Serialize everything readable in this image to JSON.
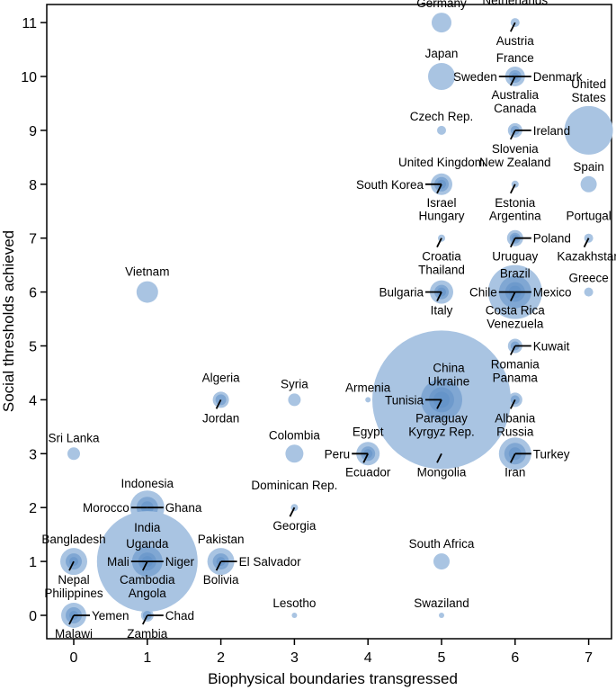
{
  "chart_data": {
    "type": "scatter",
    "xlabel": "Biophysical boundaries transgressed",
    "ylabel": "Social thresholds achieved",
    "xlim": [
      -0.35,
      7.35
    ],
    "ylim": [
      -0.45,
      11.35
    ],
    "xticks": [
      0,
      1,
      2,
      3,
      4,
      5,
      6,
      7
    ],
    "yticks": [
      0,
      1,
      2,
      3,
      4,
      5,
      6,
      7,
      8,
      9,
      10,
      11
    ],
    "grid": false,
    "bubble_color": "#a9c4e2",
    "stacked_color": "#5f90c6",
    "leader_color": "#000000",
    "points": [
      {
        "x": 5,
        "y": 11,
        "label": "Germany",
        "pos": "above"
      },
      {
        "x": 6,
        "y": 11,
        "labels": [
          "Netherlands",
          "Austria"
        ],
        "pos": "above-below"
      },
      {
        "x": 5,
        "y": 10,
        "label": "Japan",
        "pos": "above"
      },
      {
        "x": 6,
        "y": 10,
        "labels": [
          "France",
          "Sweden",
          "Denmark",
          "Australia"
        ],
        "pos": "cross"
      },
      {
        "x": 5,
        "y": 9,
        "label": "Czech Rep.",
        "pos": "above"
      },
      {
        "x": 6,
        "y": 9,
        "labels": [
          "Canada",
          "Ireland",
          "Slovenia"
        ],
        "pos": "above-right-below"
      },
      {
        "x": 7,
        "y": 9,
        "label": "United States",
        "pos": "above2"
      },
      {
        "x": 5,
        "y": 8,
        "labels": [
          "United Kingdom",
          "South Korea",
          "Israel"
        ],
        "pos": "above-left-below"
      },
      {
        "x": 6,
        "y": 8,
        "labels": [
          "New Zealand",
          "Estonia"
        ],
        "pos": "above-below"
      },
      {
        "x": 7,
        "y": 8,
        "label": "Spain",
        "pos": "above"
      },
      {
        "x": 5,
        "y": 7,
        "labels": [
          "Hungary",
          "Croatia"
        ],
        "pos": "above-below"
      },
      {
        "x": 6,
        "y": 7,
        "labels": [
          "Argentina",
          "Poland",
          "Uruguay"
        ],
        "pos": "above-right-below"
      },
      {
        "x": 7,
        "y": 7,
        "labels": [
          "Portugal",
          "Kazakhstan"
        ],
        "pos": "above-below"
      },
      {
        "x": 1,
        "y": 6,
        "label": "Vietnam",
        "pos": "above"
      },
      {
        "x": 5,
        "y": 6,
        "labels": [
          "Thailand",
          "Bulgaria",
          "Italy"
        ],
        "pos": "above-left-below"
      },
      {
        "x": 6,
        "y": 6,
        "labels": [
          "Brazil",
          "Chile",
          "Mexico",
          "Costa Rica"
        ],
        "pos": "cross"
      },
      {
        "x": 7,
        "y": 6,
        "label": "Greece",
        "pos": "above"
      },
      {
        "x": 6,
        "y": 5,
        "labels": [
          "Venezuela",
          "Kuwait",
          "Romania"
        ],
        "pos": "above-right-below"
      },
      {
        "x": 2,
        "y": 4,
        "labels": [
          "Algeria",
          "Jordan"
        ],
        "pos": "above-below"
      },
      {
        "x": 3,
        "y": 4,
        "label": "Syria",
        "pos": "above"
      },
      {
        "x": 4,
        "y": 4,
        "label": "Armenia",
        "pos": "above"
      },
      {
        "x": 5,
        "y": 4,
        "labels": [
          "China",
          "Ukraine",
          "Tunisia",
          "Paraguay"
        ],
        "pos": "china"
      },
      {
        "x": 6,
        "y": 4,
        "labels": [
          "Panama",
          "Albania"
        ],
        "pos": "above-below"
      },
      {
        "x": 0,
        "y": 3,
        "label": "Sri Lanka",
        "pos": "above"
      },
      {
        "x": 3,
        "y": 3,
        "label": "Colombia",
        "pos": "above"
      },
      {
        "x": 4,
        "y": 3,
        "labels": [
          "Egypt",
          "Peru",
          "Ecuador"
        ],
        "pos": "above-left-below"
      },
      {
        "x": 5,
        "y": 3,
        "labels": [
          "Kyrgyz Rep.",
          "Mongolia"
        ],
        "pos": "above-below"
      },
      {
        "x": 6,
        "y": 3,
        "labels": [
          "Russia",
          "Turkey",
          "Iran"
        ],
        "pos": "above-right-below"
      },
      {
        "x": 1,
        "y": 2,
        "labels": [
          "Indonesia",
          "Morocco",
          "Ghana"
        ],
        "pos": "above-left-right"
      },
      {
        "x": 3,
        "y": 2,
        "labels": [
          "Dominican Rep.",
          "Georgia"
        ],
        "pos": "above-below"
      },
      {
        "x": 0,
        "y": 1,
        "labels": [
          "Bangladesh",
          "Nepal"
        ],
        "pos": "above-below"
      },
      {
        "x": 1,
        "y": 1,
        "labels": [
          "India",
          "Uganda",
          "Mali",
          "Niger",
          "Cambodia"
        ],
        "pos": "india"
      },
      {
        "x": 2,
        "y": 1,
        "labels": [
          "Pakistan",
          "El Salvador",
          "Bolivia"
        ],
        "pos": "above-right-below"
      },
      {
        "x": 5,
        "y": 1,
        "label": "South Africa",
        "pos": "above"
      },
      {
        "x": 0,
        "y": 0,
        "labels": [
          "Philippines",
          "Yemen",
          "Malawi"
        ],
        "pos": "above-right-below"
      },
      {
        "x": 1,
        "y": 0,
        "labels": [
          "Angola",
          "Chad",
          "Zambia"
        ],
        "pos": "above-right-below"
      },
      {
        "x": 3,
        "y": 0,
        "label": "Lesotho",
        "pos": "above"
      },
      {
        "x": 5,
        "y": 0,
        "label": "Swaziland",
        "pos": "above"
      }
    ]
  }
}
